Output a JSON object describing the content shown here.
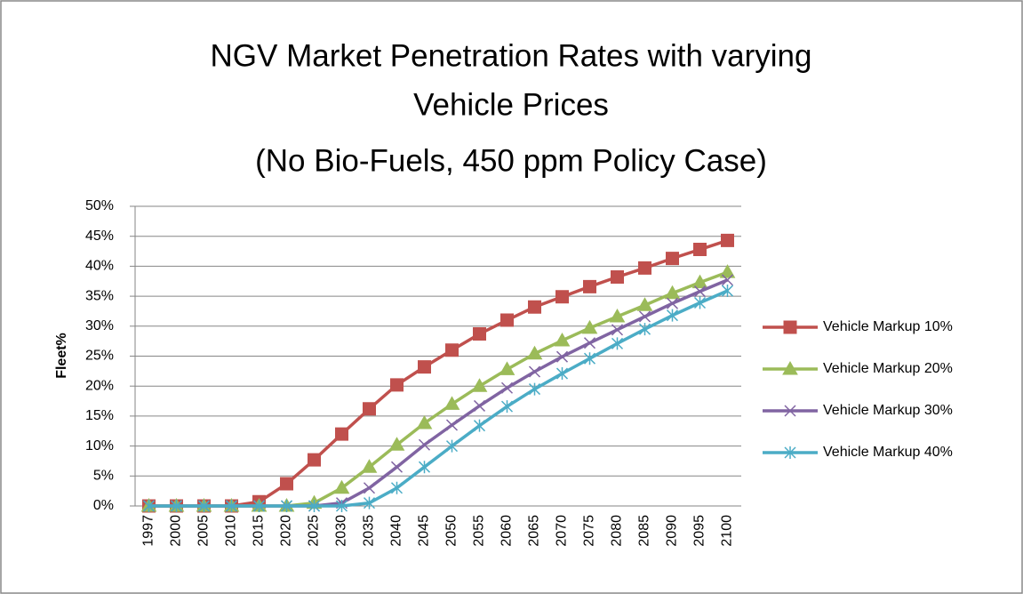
{
  "chart_data": {
    "type": "line",
    "title": [
      "NGV Market Penetration Rates with varying",
      "Vehicle Prices",
      "(No Bio-Fuels, 450 ppm Policy Case)"
    ],
    "y_label": "Fleet%",
    "categories": [
      "1997",
      "2000",
      "2005",
      "2010",
      "2015",
      "2020",
      "2025",
      "2030",
      "2035",
      "2040",
      "2045",
      "2050",
      "2055",
      "2060",
      "2065",
      "2070",
      "2075",
      "2080",
      "2085",
      "2090",
      "2095",
      "2100"
    ],
    "series": [
      {
        "name": "Vehicle Markup 10%",
        "color": "#c0504d",
        "marker": "square",
        "values": [
          0,
          0,
          0,
          0,
          0.7,
          3.7,
          7.7,
          12,
          16.2,
          20.2,
          23.2,
          26,
          28.7,
          31,
          33.2,
          34.9,
          36.6,
          38.2,
          39.7,
          41.3,
          42.8,
          44.3
        ]
      },
      {
        "name": "Vehicle Markup 20%",
        "color": "#9bbb59",
        "marker": "triangle",
        "values": [
          0,
          0,
          0,
          0,
          0,
          0,
          0.5,
          3,
          6.5,
          10.2,
          13.8,
          17,
          20,
          22.8,
          25.4,
          27.6,
          29.7,
          31.6,
          33.5,
          35.5,
          37.3,
          39
        ]
      },
      {
        "name": "Vehicle Markup 30%",
        "color": "#8064a2",
        "marker": "x",
        "values": [
          0,
          0,
          0,
          0,
          0,
          0,
          0,
          0.5,
          3,
          6.5,
          10.2,
          13.5,
          16.7,
          19.7,
          22.4,
          24.9,
          27.2,
          29.4,
          31.6,
          33.8,
          35.8,
          37.7
        ]
      },
      {
        "name": "Vehicle Markup 40%",
        "color": "#4bacc6",
        "marker": "star",
        "values": [
          0,
          0,
          0,
          0,
          0,
          0,
          0,
          0,
          0.5,
          3,
          6.5,
          10,
          13.4,
          16.6,
          19.5,
          22.1,
          24.6,
          27.1,
          29.5,
          31.8,
          33.9,
          35.9
        ]
      }
    ],
    "ylim": [
      0,
      50
    ],
    "yticks": [
      {
        "value": 0,
        "label": "0%"
      },
      {
        "value": 5,
        "label": "5%"
      },
      {
        "value": 10,
        "label": "10%"
      },
      {
        "value": 15,
        "label": "15%"
      },
      {
        "value": 20,
        "label": "20%"
      },
      {
        "value": 25,
        "label": "25%"
      },
      {
        "value": 30,
        "label": "30%"
      },
      {
        "value": 35,
        "label": "35%"
      },
      {
        "value": 40,
        "label": "40%"
      },
      {
        "value": 45,
        "label": "45%"
      },
      {
        "value": 50,
        "label": "50%"
      }
    ],
    "grid": true,
    "legend": "right"
  }
}
